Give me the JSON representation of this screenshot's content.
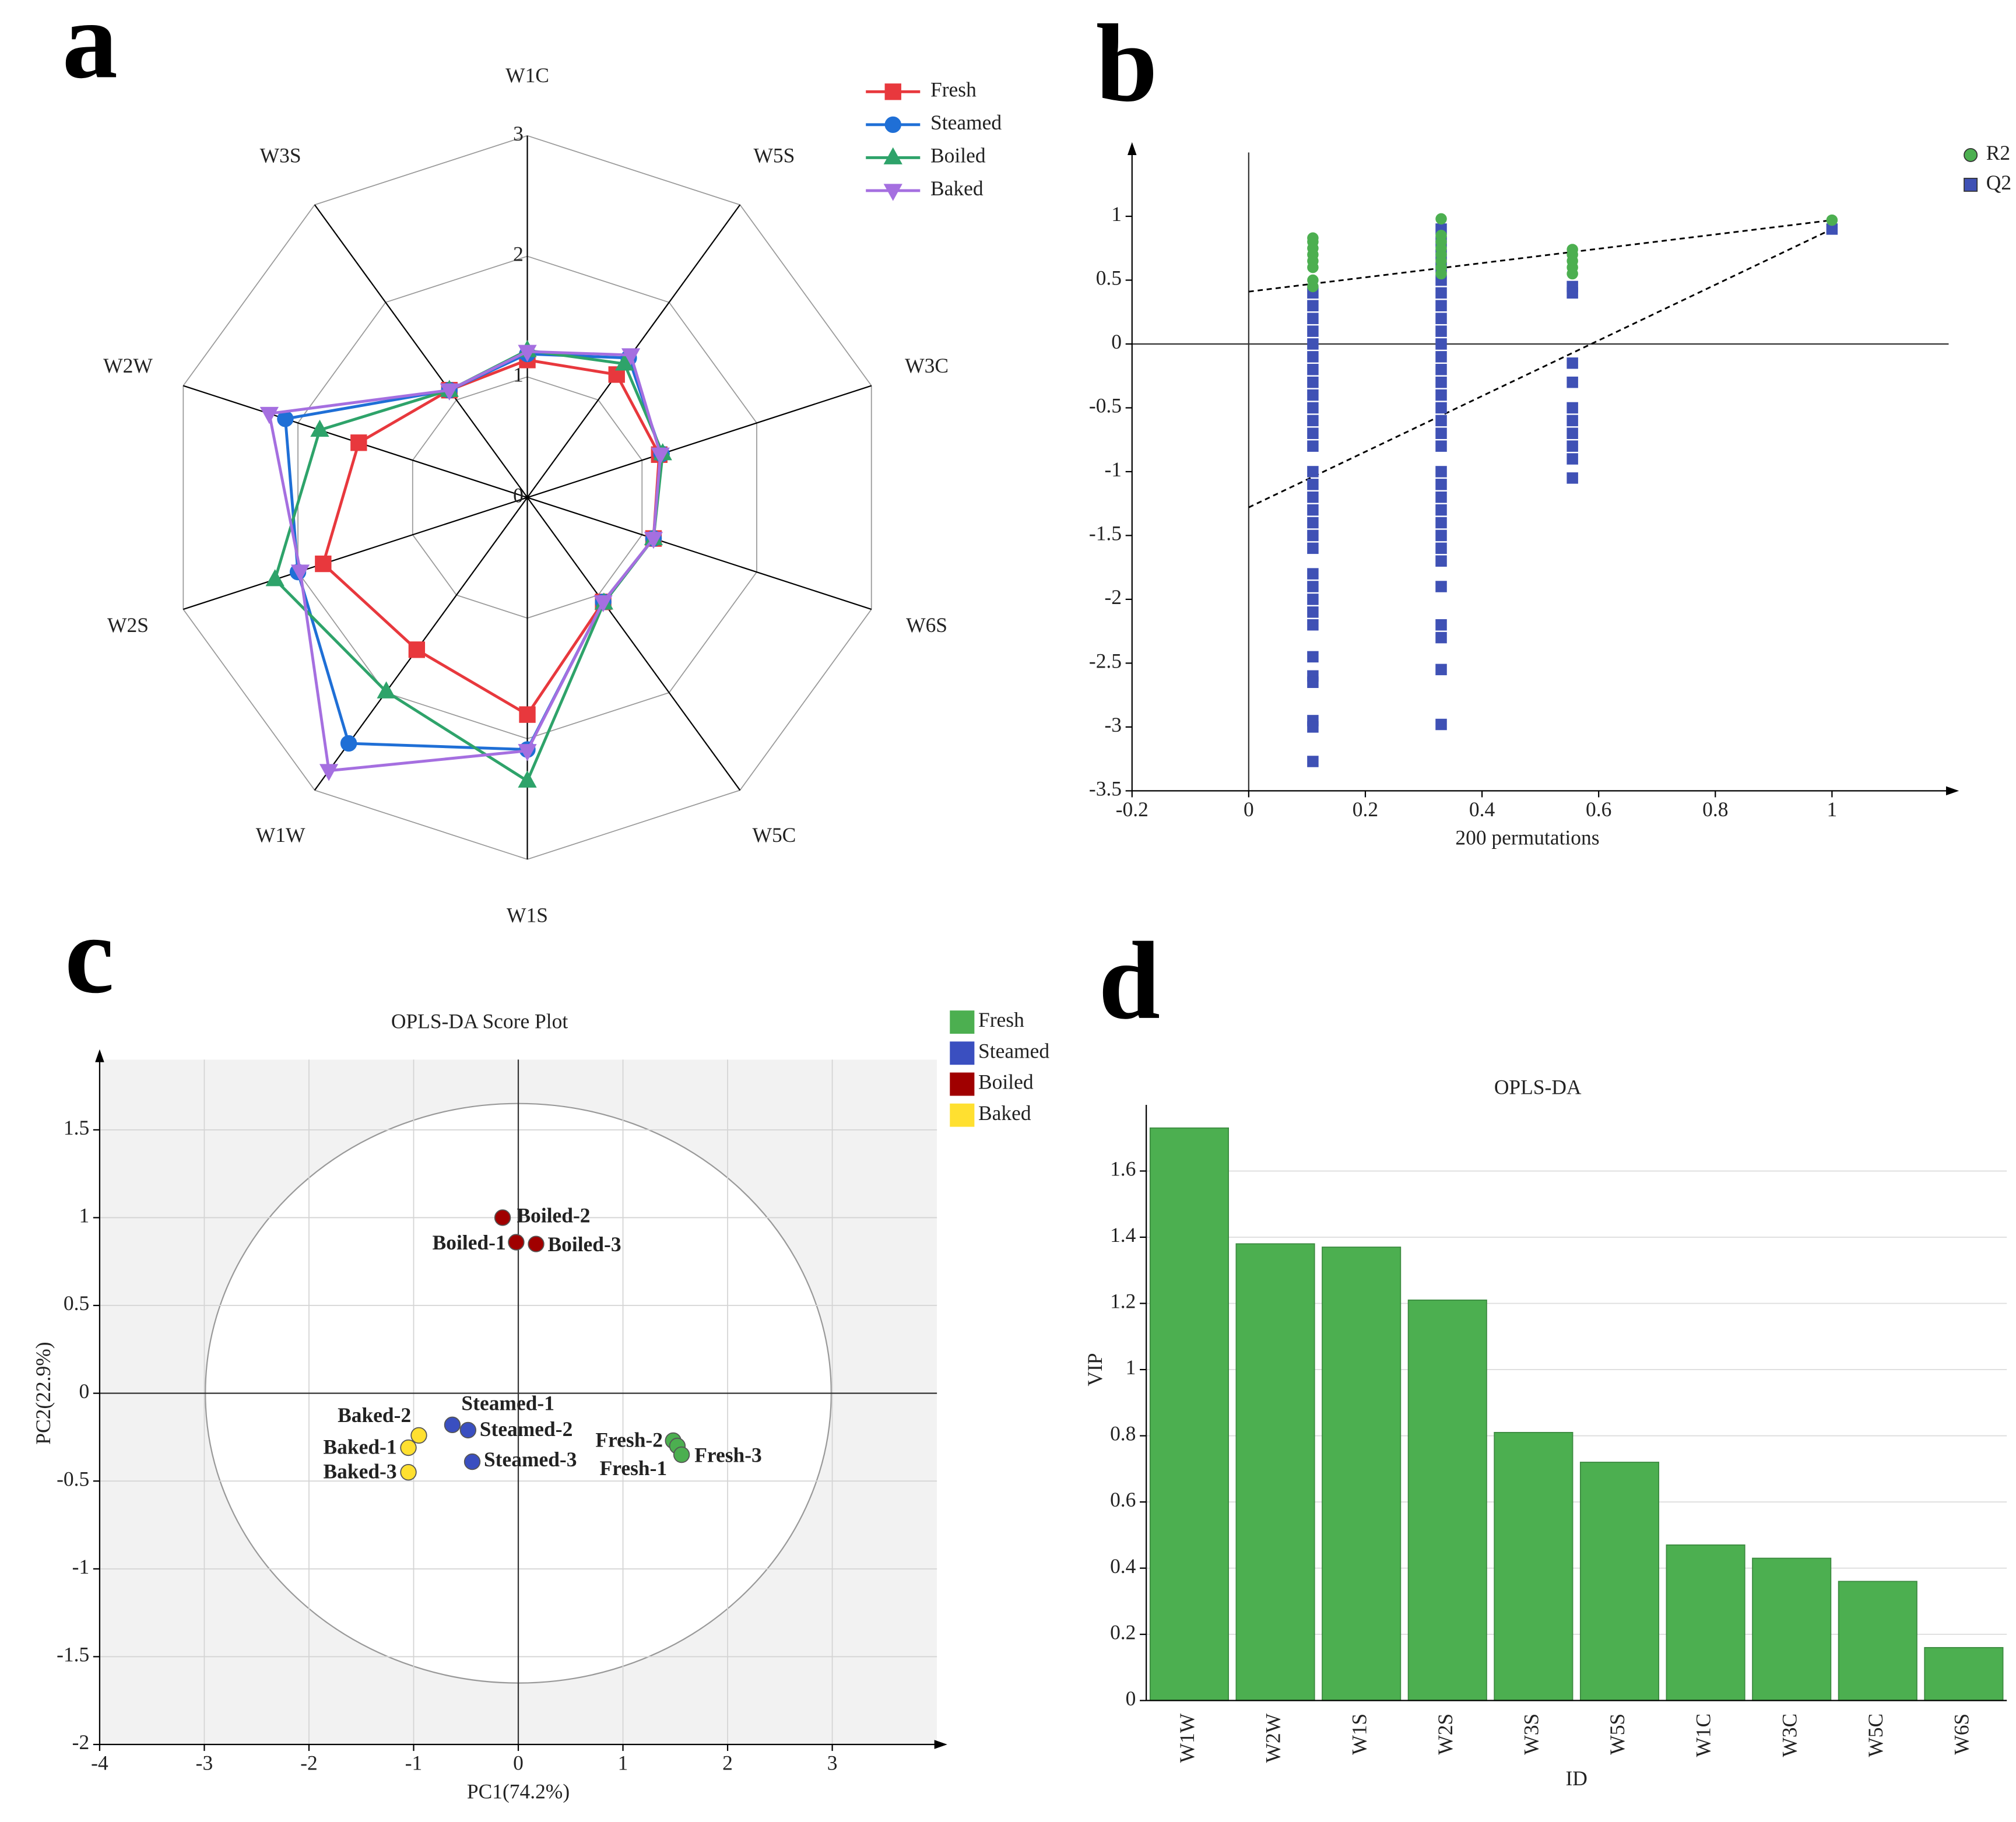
{
  "chart_data": [
    {
      "type": "radar",
      "panel_label": "a",
      "categories": [
        "W1C",
        "W5S",
        "W3C",
        "W6S",
        "W5C",
        "W1S",
        "W1W",
        "W2S",
        "W2W",
        "W3S"
      ],
      "rlim": [
        0,
        3
      ],
      "rticks": [
        0,
        1,
        2,
        3
      ],
      "series": [
        {
          "name": "Fresh",
          "color": "#e8383d",
          "marker": "square",
          "values": [
            1.14,
            1.26,
            1.15,
            1.1,
            1.07,
            1.8,
            1.56,
            1.78,
            1.47,
            1.1
          ]
        },
        {
          "name": "Steamed",
          "color": "#1f6fd6",
          "marker": "circle",
          "values": [
            1.19,
            1.43,
            1.17,
            1.1,
            1.07,
            2.09,
            2.52,
            2.0,
            2.11,
            1.1
          ]
        },
        {
          "name": "Boiled",
          "color": "#2ea36a",
          "marker": "triangle-up",
          "values": [
            1.22,
            1.37,
            1.18,
            1.1,
            1.08,
            2.35,
            1.99,
            2.2,
            1.81,
            1.1
          ]
        },
        {
          "name": "Baked",
          "color": "#a56fe0",
          "marker": "triangle-down",
          "values": [
            1.21,
            1.46,
            1.16,
            1.1,
            1.07,
            2.1,
            2.8,
            1.98,
            2.25,
            1.1
          ]
        }
      ]
    },
    {
      "type": "scatter",
      "panel_label": "b",
      "xlabel": "200 permutations",
      "xlim": [
        -0.2,
        1.2
      ],
      "ylim": [
        -3.5,
        1.5
      ],
      "xticks": [
        -0.2,
        0,
        0.2,
        0.4,
        0.6,
        0.8,
        1
      ],
      "yticks": [
        -3.5,
        -3,
        -2.5,
        -2,
        -1.5,
        -1,
        -0.5,
        0,
        0.5,
        1
      ],
      "legend": "upper right",
      "grid": false,
      "series": [
        {
          "name": "R2",
          "color": "#4caf50",
          "marker": "circle",
          "x": [
            0.11,
            0.11,
            0.11,
            0.11,
            0.11,
            0.11,
            0.11,
            0.11,
            0.33,
            0.33,
            0.33,
            0.33,
            0.33,
            0.33,
            0.33,
            0.33,
            0.555,
            0.555,
            0.555,
            0.555,
            0.555,
            1
          ],
          "values": [
            0.83,
            0.8,
            0.75,
            0.7,
            0.65,
            0.6,
            0.5,
            0.45,
            0.98,
            0.85,
            0.8,
            0.75,
            0.7,
            0.65,
            0.6,
            0.55,
            0.74,
            0.7,
            0.65,
            0.6,
            0.55,
            0.97
          ]
        },
        {
          "name": "Q2",
          "color": "#3f51b5",
          "marker": "square",
          "x": [
            0.11,
            0.11,
            0.11,
            0.11,
            0.11,
            0.11,
            0.11,
            0.11,
            0.11,
            0.11,
            0.11,
            0.11,
            0.11,
            0.11,
            0.11,
            0.11,
            0.11,
            0.11,
            0.11,
            0.11,
            0.11,
            0.11,
            0.11,
            0.11,
            0.11,
            0.11,
            0.11,
            0.11,
            0.11,
            0.11,
            0.11,
            0.33,
            0.33,
            0.33,
            0.33,
            0.33,
            0.33,
            0.33,
            0.33,
            0.33,
            0.33,
            0.33,
            0.33,
            0.33,
            0.33,
            0.33,
            0.33,
            0.33,
            0.33,
            0.33,
            0.33,
            0.33,
            0.33,
            0.33,
            0.33,
            0.33,
            0.33,
            0.33,
            0.33,
            0.33,
            0.33,
            0.33,
            0.555,
            0.555,
            0.555,
            0.555,
            0.555,
            0.555,
            0.555,
            0.555,
            0.555,
            0.555,
            1
          ],
          "values": [
            0.4,
            0.3,
            0.2,
            0.1,
            0,
            -0.1,
            -0.2,
            -0.3,
            -0.4,
            -0.5,
            -0.6,
            -0.7,
            -0.8,
            -1,
            -1.1,
            -1.2,
            -1.3,
            -1.4,
            -1.5,
            -1.6,
            -1.8,
            -1.9,
            -2,
            -2.1,
            -2.2,
            -2.45,
            -2.6,
            -2.65,
            -2.95,
            -3,
            -3.27,
            0.9,
            0.8,
            0.7,
            0.6,
            0.5,
            0.4,
            0.3,
            0.2,
            0.1,
            0,
            -0.1,
            -0.2,
            -0.3,
            -0.4,
            -0.5,
            -0.6,
            -0.7,
            -0.8,
            -1,
            -1.1,
            -1.2,
            -1.3,
            -1.4,
            -1.5,
            -1.6,
            -1.7,
            -1.9,
            -2.2,
            -2.3,
            -2.55,
            -2.98,
            0.45,
            0.4,
            -0.15,
            -0.3,
            -0.5,
            -0.6,
            -0.7,
            -0.8,
            -0.9,
            -1.05,
            0.9
          ]
        }
      ],
      "trend_lines": [
        {
          "x": [
            0,
            1
          ],
          "values": [
            0.41,
            0.97
          ]
        },
        {
          "x": [
            0,
            1
          ],
          "values": [
            -1.28,
            0.9
          ]
        }
      ]
    },
    {
      "type": "scatter",
      "panel_label": "c",
      "title": "OPLS-DA Score Plot",
      "xlabel": "PC1(74.2%)",
      "ylabel": "PC2(22.9%)",
      "xlim": [
        -4,
        4
      ],
      "ylim": [
        -2,
        1.9
      ],
      "xticks": [
        -4,
        -3,
        -2,
        -1,
        0,
        1,
        2,
        3
      ],
      "yticks": [
        -2,
        -1.5,
        -1,
        -0.5,
        0,
        0.5,
        1,
        1.5
      ],
      "grid": true,
      "legend": "outside right",
      "legend_symbol": "square",
      "ellipse": {
        "rx": 2.99,
        "ry": 1.65
      },
      "series": [
        {
          "name": "Fresh",
          "color": "#4caf50",
          "label_color": "#2e7d32",
          "marker": "circle",
          "x": [
            1.48,
            1.52,
            1.56
          ],
          "values": [
            -0.27,
            -0.3,
            -0.35
          ],
          "point_labels": [
            "Fresh-2",
            "Fresh-1",
            "Fresh-3"
          ]
        },
        {
          "name": "Steamed",
          "color": "#3a4fc0",
          "label_color": "#2a3a8c",
          "marker": "circle",
          "x": [
            -0.63,
            -0.48,
            -0.44
          ],
          "values": [
            -0.18,
            -0.21,
            -0.39
          ],
          "point_labels": [
            "Steamed-1",
            "Steamed-2",
            "Steamed-3"
          ]
        },
        {
          "name": "Boiled",
          "color": "#a00000",
          "label_color": "#8b0000",
          "marker": "circle",
          "x": [
            -0.02,
            -0.15,
            0.17
          ],
          "values": [
            0.86,
            1.0,
            0.85
          ],
          "point_labels": [
            "Boiled-1",
            "Boiled-2",
            "Boiled-3"
          ]
        },
        {
          "name": "Baked",
          "color": "#ffe030",
          "label_color": "#b8a020",
          "marker": "circle",
          "x": [
            -1.05,
            -0.95,
            -1.05
          ],
          "values": [
            -0.31,
            -0.24,
            -0.45
          ],
          "point_labels": [
            "Baked-1",
            "Baked-2",
            "Baked-3"
          ]
        }
      ]
    },
    {
      "type": "bar",
      "panel_label": "d",
      "title": "OPLS-DA",
      "xlabel": "ID",
      "ylabel": "VIP",
      "categories": [
        "W1W",
        "W2W",
        "W1S",
        "W2S",
        "W3S",
        "W5S",
        "W1C",
        "W3C",
        "W5C",
        "W6S"
      ],
      "values": [
        1.73,
        1.38,
        1.37,
        1.21,
        0.81,
        0.72,
        0.47,
        0.43,
        0.36,
        0.16
      ],
      "color": "#4caf50",
      "ylim": [
        0,
        1.8
      ],
      "yticks": [
        0,
        0.2,
        0.4,
        0.6,
        0.8,
        1,
        1.2,
        1.4,
        1.6
      ],
      "grid": true
    }
  ]
}
